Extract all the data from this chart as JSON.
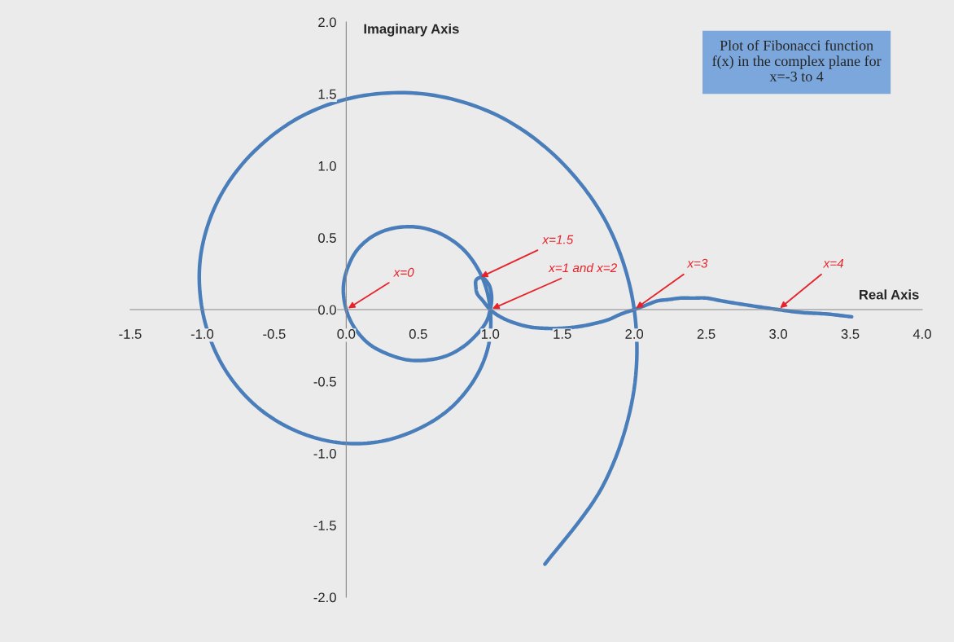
{
  "chart_data": {
    "type": "line",
    "title": "Plot of Fibonacci function\nf(x) in the complex plane for\nx=-3 to 4",
    "xlabel": "Real Axis",
    "ylabel": "Imaginary Axis",
    "xlim": [
      -1.5,
      4.0
    ],
    "ylim": [
      -2.0,
      2.0
    ],
    "xticks": [
      -1.5,
      {
        "value": -1,
        "label": "-1.0"
      },
      -0.5,
      {
        "value": 0,
        "label": "0.0"
      },
      0.5,
      {
        "value": 1,
        "label": "1.0"
      },
      1.5,
      {
        "value": 2,
        "label": "2.0"
      },
      2.5,
      {
        "value": 3,
        "label": "3.0"
      },
      3.5,
      {
        "value": 4,
        "label": "4.0"
      }
    ],
    "yticks": [
      {
        "value": -2,
        "label": "-2.0"
      },
      -1.5,
      {
        "value": -1,
        "label": "-1.0"
      },
      -0.5,
      {
        "value": 0,
        "label": "0.0"
      },
      0.5,
      {
        "value": 1,
        "label": "1.0"
      },
      1.5,
      {
        "value": 2,
        "label": "2.0"
      }
    ],
    "series": [
      {
        "color": "#4a7ebb",
        "x": [
          1.38,
          1.78,
          1.99,
          2.0,
          1.83,
          1.51,
          1.09,
          0.61,
          0.13,
          -0.3,
          -0.65,
          -0.89,
          -1.01,
          -1.0,
          -0.88,
          -0.67,
          -0.4,
          -0.09,
          0.22,
          0.5,
          0.73,
          0.9,
          0.99,
          1.0,
          0.95,
          0.84,
          0.69,
          0.52,
          0.35,
          0.2,
          0.08,
          0.01,
          -0.02,
          0.0,
          0.06,
          0.16,
          0.29,
          0.43,
          0.57,
          0.7,
          0.81,
          0.9,
          0.97,
          1.0,
          1.01,
          1.0,
          0.98,
          0.95,
          0.92,
          0.9,
          0.9,
          0.91,
          0.95,
          1.0,
          1.07,
          1.16,
          1.27,
          1.38,
          1.49,
          1.6,
          1.71,
          1.82,
          1.91,
          2.0,
          2.08,
          2.16,
          2.24,
          2.32,
          2.41,
          2.5,
          2.61,
          2.73,
          2.86,
          3.0,
          3.16,
          3.33,
          3.51
        ],
        "values": [
          -1.77,
          -1.23,
          -0.61,
          0.0,
          0.56,
          1.01,
          1.33,
          1.49,
          1.49,
          1.35,
          1.09,
          0.76,
          0.38,
          0.0,
          -0.35,
          -0.63,
          -0.82,
          -0.92,
          -0.92,
          -0.83,
          -0.68,
          -0.47,
          -0.24,
          0.0,
          0.21,
          0.39,
          0.51,
          0.57,
          0.57,
          0.52,
          0.42,
          0.29,
          0.15,
          0.0,
          -0.13,
          -0.24,
          -0.31,
          -0.35,
          -0.35,
          -0.32,
          -0.26,
          -0.18,
          -0.09,
          0.0,
          0.08,
          0.15,
          0.19,
          0.22,
          0.22,
          0.2,
          0.16,
          0.11,
          0.06,
          0.0,
          -0.05,
          -0.09,
          -0.12,
          -0.13,
          -0.13,
          -0.12,
          -0.1,
          -0.07,
          -0.03,
          0.0,
          0.03,
          0.06,
          0.07,
          0.08,
          0.08,
          0.08,
          0.06,
          0.04,
          0.02,
          0.0,
          -0.02,
          -0.03,
          -0.05
        ]
      }
    ],
    "annotations": [
      {
        "text": "x=0",
        "x": 0.0,
        "y": 0.0
      },
      {
        "text": "x=1.5",
        "x": 0.92,
        "y": 0.22
      },
      {
        "text": "x=1 and x=2",
        "x": 1.0,
        "y": 0.0
      },
      {
        "text": "x=3",
        "x": 2.0,
        "y": 0.0
      },
      {
        "text": "x=4",
        "x": 3.0,
        "y": 0.0
      }
    ]
  }
}
